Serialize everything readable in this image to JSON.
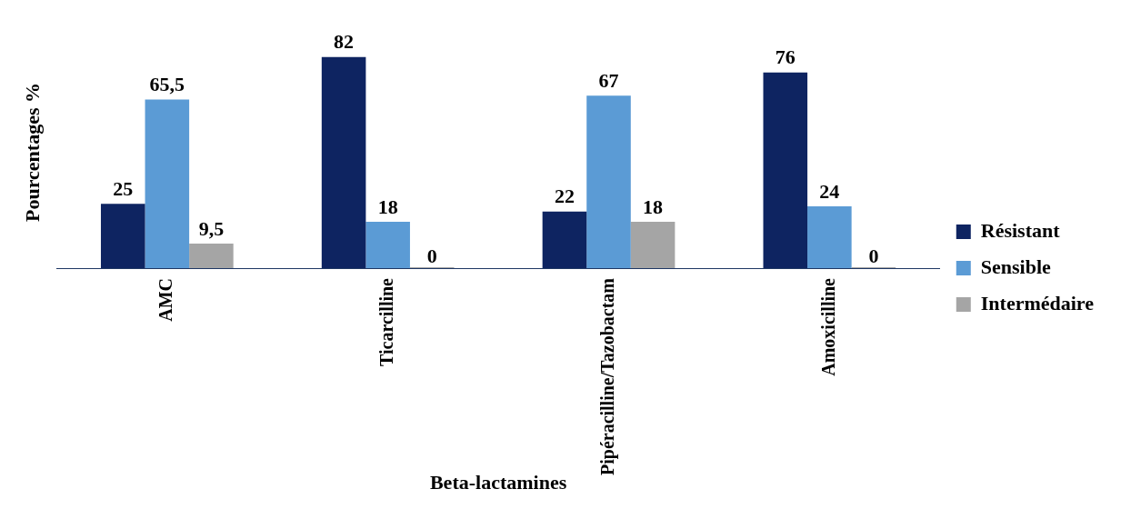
{
  "chart_data": {
    "type": "bar",
    "xlabel": "Beta-lactamines",
    "ylabel": "Pourcentages %",
    "categories": [
      "AMC",
      "Ticarcilline",
      "Pipéracilline/Tazobactam",
      "Amoxicilline"
    ],
    "legend": "right",
    "series": [
      {
        "name": "Résistant",
        "color": "#0e2461",
        "values": [
          25,
          82,
          22,
          76
        ],
        "value_labels": [
          "25",
          "82",
          "22",
          "76"
        ]
      },
      {
        "name": "Sensible",
        "color": "#5b9bd5",
        "values": [
          65.5,
          18,
          67,
          24
        ],
        "value_labels": [
          "65,5",
          "18",
          "67",
          "24"
        ]
      },
      {
        "name": "Intermédaire",
        "color": "#a5a5a5",
        "values": [
          9.5,
          0,
          18,
          0
        ],
        "value_labels": [
          "9,5",
          "0",
          "18",
          "0"
        ]
      }
    ]
  }
}
